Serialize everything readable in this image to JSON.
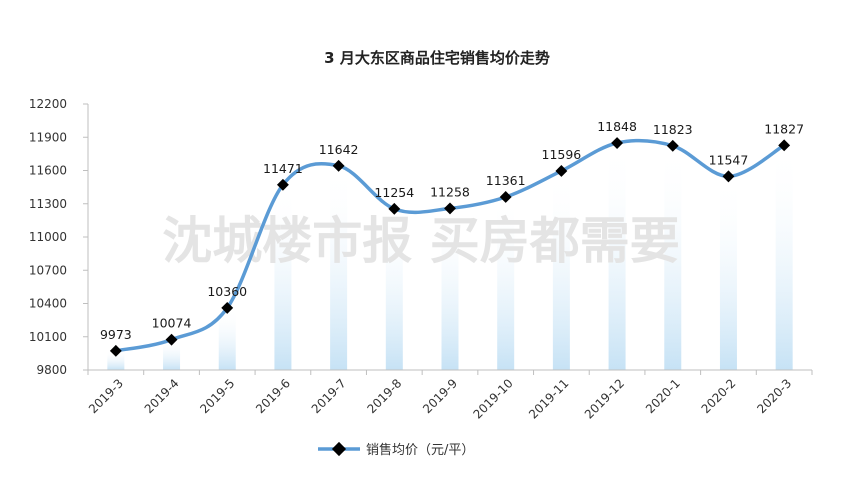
{
  "chart_data": {
    "type": "line",
    "title": "3 月大东区商品住宅销售均价走势",
    "categories": [
      "2019-3",
      "2019-4",
      "2019-5",
      "2019-6",
      "2019-7",
      "2019-8",
      "2019-9",
      "2019-10",
      "2019-11",
      "2019-12",
      "2020-1",
      "2020-2",
      "2020-3"
    ],
    "series": [
      {
        "name": "销售均价（元/平）",
        "values": [
          9973,
          10074,
          10360,
          11471,
          11642,
          11254,
          11258,
          11361,
          11596,
          11848,
          11823,
          11547,
          11827
        ]
      }
    ],
    "yticks": [
      9800,
      10100,
      10400,
      10700,
      11000,
      11300,
      11600,
      11900,
      12200
    ],
    "ylim": [
      9800,
      12200
    ],
    "legend_position": "bottom",
    "grid": false,
    "smooth": true,
    "data_labels": true,
    "line_color": "#5b9bd5",
    "marker_color": "#000000",
    "watermark": "沈城楼市报 买房都需要"
  }
}
